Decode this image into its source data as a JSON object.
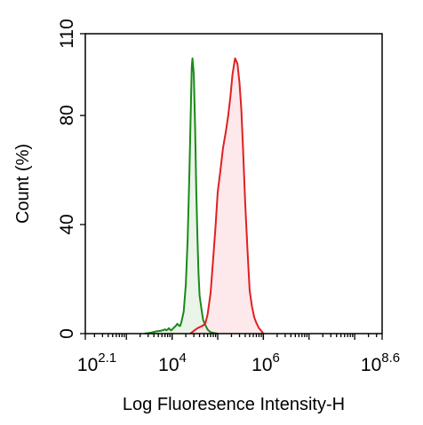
{
  "chart_data": {
    "type": "area",
    "title": "",
    "xlabel": "Log Fluoresence Intensity-H",
    "ylabel": "Count  (%)",
    "x_scale": "log",
    "xlim": [
      126,
      398107171
    ],
    "ylim": [
      0,
      110
    ],
    "grid": false,
    "legend": "none",
    "x_ticks": [
      {
        "base": "10",
        "exp": "2.1"
      },
      {
        "base": "10",
        "exp": "4"
      },
      {
        "base": "10",
        "exp": "6"
      },
      {
        "base": "10",
        "exp": "8.6"
      }
    ],
    "y_ticks": [
      "0",
      "40",
      "80",
      "110"
    ],
    "series": [
      {
        "color": "#1a8a1a",
        "fill": "#e6f2e4",
        "x": [
          2500,
          3500,
          4500,
          5500,
          6500,
          7000,
          7500,
          8000,
          8500,
          9000,
          9500,
          10000,
          11000,
          12000,
          13000,
          14000,
          15000,
          16000,
          18000,
          20000,
          22000,
          24000,
          26000,
          27000,
          28000,
          30000,
          32000,
          34000,
          36000,
          38000,
          40000,
          44000,
          48000,
          54000,
          60000,
          70000,
          85000,
          100000
        ],
        "y": [
          0,
          0.4,
          0.8,
          1,
          1.3,
          1.6,
          1.2,
          1.5,
          2,
          1.5,
          1.2,
          1.5,
          2.2,
          2.8,
          3.6,
          3.0,
          2.8,
          4.2,
          8,
          18,
          35,
          60,
          85,
          98,
          101,
          95,
          75,
          52,
          35,
          22,
          14,
          9,
          5,
          3,
          1.5,
          0.5,
          0.2,
          0
        ]
      },
      {
        "color": "#e02020",
        "fill": "#fde4e8",
        "x": [
          25000,
          30000,
          36000,
          42000,
          48000,
          54000,
          60000,
          70000,
          80000,
          90000,
          100000,
          115000,
          130000,
          150000,
          170000,
          190000,
          210000,
          240000,
          270000,
          300000,
          330000,
          360000,
          400000,
          450000,
          500000,
          560000,
          630000,
          700000,
          800000,
          900000,
          1000000
        ],
        "y": [
          0,
          1,
          2,
          2.5,
          3,
          4,
          7,
          15,
          28,
          40,
          52,
          60,
          68,
          74,
          80,
          87,
          95,
          101,
          99,
          92,
          82,
          67,
          48,
          30,
          16,
          10,
          6,
          4,
          2,
          1,
          0
        ]
      }
    ]
  }
}
